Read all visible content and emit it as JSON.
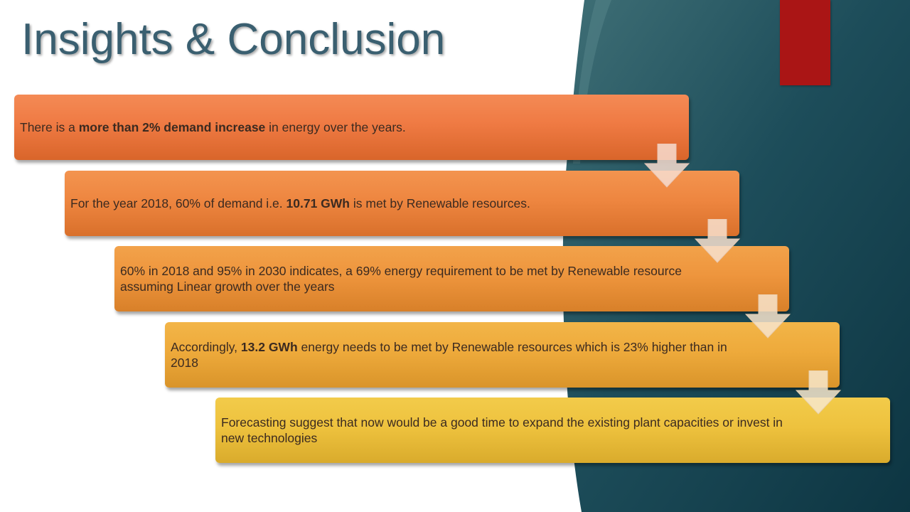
{
  "slide": {
    "title": "Insights & Conclusion"
  },
  "steps": [
    {
      "pre": "There is a ",
      "bold": "more than 2% demand increase",
      "post": " in energy over the years."
    },
    {
      "pre": "For the year 2018, 60% of demand i.e. ",
      "bold": "10.71 GWh",
      "post": " is met by Renewable resources."
    },
    {
      "pre": "60% in 2018 and 95% in 2030 indicates, a 69% energy requirement to be met by Renewable resource assuming Linear growth over the years",
      "bold": "",
      "post": ""
    },
    {
      "pre": "Accordingly, ",
      "bold": "13.2 GWh",
      "post": " energy needs to be met by Renewable resources which is 23% higher than in 2018"
    },
    {
      "pre": "Forecasting suggest that now would be a good time to expand the existing plant capacities or invest in new technologies",
      "bold": "",
      "post": ""
    }
  ],
  "colors": {
    "title": "#3a5f70",
    "accent": "#aa1515",
    "panel_dark": "#0f3a48"
  }
}
